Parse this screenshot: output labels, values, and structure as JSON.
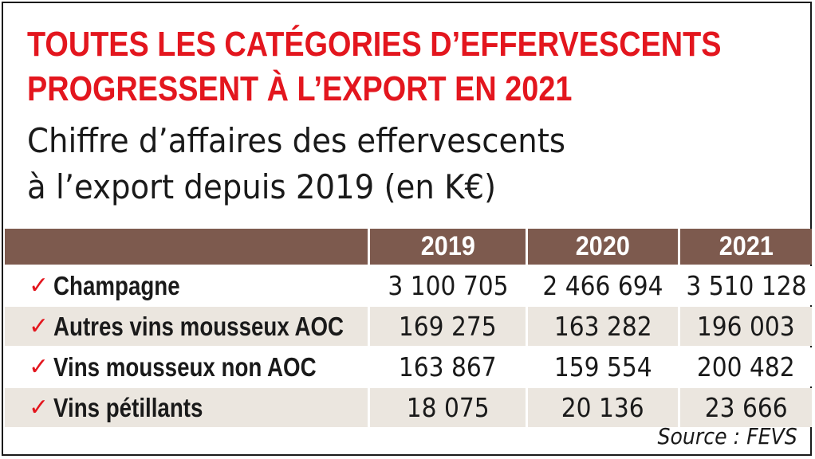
{
  "title_line1": "TOUTES LES CATÉGORIES D’EFFERVESCENTS",
  "title_line2": "PROGRESSENT À L’EXPORT EN 2021",
  "subtitle_line1": "Chiffre d’affaires des effervescents",
  "subtitle_line2": "à l’export depuis 2019 (en K€)",
  "colors": {
    "title": "#e3161e",
    "header_bg": "#7d5a4e",
    "alt_row_bg": "#ebe6df",
    "check": "#e3161e"
  },
  "table": {
    "columns": [
      "2019",
      "2020",
      "2021"
    ],
    "rows": [
      {
        "label": "Champagne",
        "values": [
          "3 100 705",
          "2 466 694",
          "3 510 128"
        ]
      },
      {
        "label": "Autres vins mousseux AOC",
        "values": [
          "169 275",
          "163 282",
          "196 003"
        ]
      },
      {
        "label": "Vins mousseux non AOC",
        "values": [
          "163 867",
          "159 554",
          "200 482"
        ]
      },
      {
        "label": "Vins pétillants",
        "values": [
          "18 075",
          "20 136",
          "23 666"
        ]
      }
    ]
  },
  "source": "Source : FEVS"
}
